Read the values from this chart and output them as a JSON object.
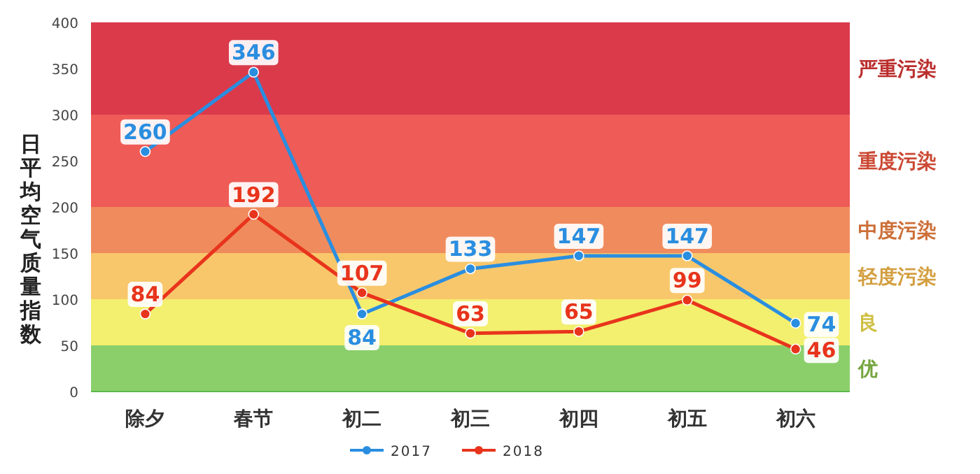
{
  "chart_data": {
    "type": "line",
    "ylabel": "日平均空气质量指数",
    "categories": [
      "除夕",
      "春节",
      "初二",
      "初三",
      "初四",
      "初五",
      "初六"
    ],
    "series": [
      {
        "name": "2017",
        "color": "#2a8ee0",
        "values": [
          260,
          346,
          84,
          133,
          147,
          147,
          74
        ]
      },
      {
        "name": "2018",
        "color": "#e8341c",
        "values": [
          84,
          192,
          107,
          63,
          65,
          99,
          46
        ]
      }
    ],
    "ylim": [
      0,
      400
    ],
    "yticks": [
      0,
      50,
      100,
      150,
      200,
      250,
      300,
      350,
      400
    ],
    "bands": [
      {
        "axis": "y",
        "from": 0,
        "to": 50,
        "label": "优",
        "color": "#8bcf6b"
      },
      {
        "axis": "y",
        "from": 50,
        "to": 100,
        "label": "良",
        "color": "#f3ef6f"
      },
      {
        "axis": "y",
        "from": 100,
        "to": 150,
        "label": "轻度污染",
        "color": "#f8c76b"
      },
      {
        "axis": "y",
        "from": 150,
        "to": 200,
        "label": "中度污染",
        "color": "#f08b5e"
      },
      {
        "axis": "y",
        "from": 200,
        "to": 300,
        "label": "重度污染",
        "color": "#ef5b56"
      },
      {
        "axis": "y",
        "from": 300,
        "to": 400,
        "label": "严重污染",
        "color": "#db3a4b"
      }
    ],
    "data_labels": true,
    "legend": "bottom",
    "marker": "circle",
    "line_style": "solid"
  }
}
